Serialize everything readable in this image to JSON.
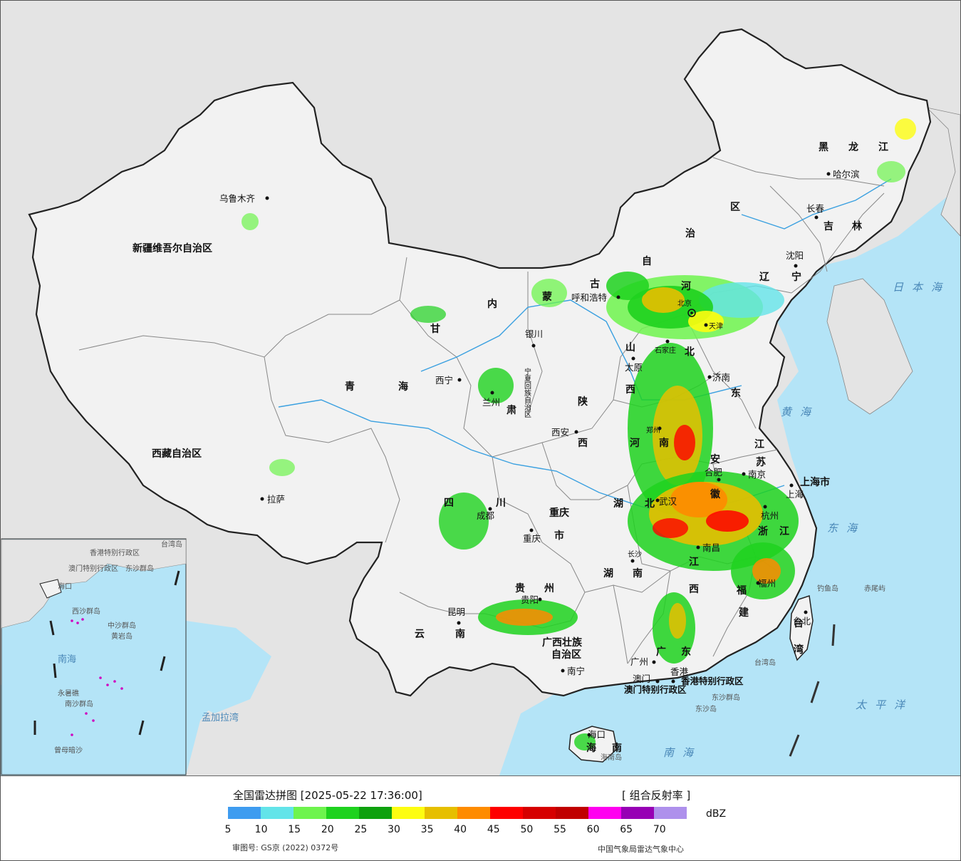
{
  "legend": {
    "title": "全国雷达拼图 [2025-05-22 17:36:00]",
    "product": "[ 组合反射率 ]",
    "unit": "dBZ",
    "ticks": [
      "5",
      "10",
      "15",
      "20",
      "25",
      "30",
      "35",
      "40",
      "45",
      "50",
      "55",
      "60",
      "65",
      "70"
    ],
    "colors": [
      "#3e9cf0",
      "#63e4e9",
      "#6ef44d",
      "#1ed21e",
      "#0ea10e",
      "#fdfd11",
      "#e6bf00",
      "#fe8b00",
      "#fe0000",
      "#d60000",
      "#c00000",
      "#ff00f0",
      "#9700b4",
      "#ae90ec"
    ],
    "approval": "审图号: GS京 (2022) 0372号",
    "source": "中国气象局雷达气象中心"
  },
  "provinces": [
    "新疆维吾尔自治区",
    "西藏自治区",
    "青",
    "海",
    "甘",
    "肃",
    "内",
    "蒙",
    "古",
    "自",
    "治",
    "区",
    "黑",
    "龙",
    "江",
    "吉",
    "林",
    "辽",
    "宁",
    "河",
    "北",
    "山",
    "西",
    "东",
    "陕",
    "宁夏回族自治区",
    "四",
    "川",
    "重庆",
    "市",
    "贵",
    "州",
    "云",
    "南",
    "广西壮族自治区",
    "湖",
    "北",
    "湖",
    "南",
    "江",
    "西",
    "安",
    "徽",
    "江",
    "苏",
    "浙",
    "江",
    "福",
    "建",
    "广",
    "东",
    "海",
    "南",
    "台",
    "湾",
    "上海市",
    "河",
    "南"
  ],
  "cities": [
    "乌鲁木齐",
    "拉萨",
    "西宁",
    "兰州",
    "银川",
    "呼和浩特",
    "北京",
    "天津",
    "石家庄",
    "太原",
    "济南",
    "西安",
    "郑州",
    "合肥",
    "南京",
    "上海",
    "杭州",
    "武汉",
    "南昌",
    "福州",
    "长沙",
    "成都",
    "重庆",
    "贵阳",
    "昆明",
    "南宁",
    "广州",
    "澳门",
    "香港",
    "海口",
    "台北",
    "沈阳",
    "长春",
    "哈尔滨"
  ],
  "regions": [
    "香港特别行政区",
    "澳门特别行政区",
    "东沙群岛",
    "东沙岛",
    "台湾岛",
    "海南岛",
    "钓鱼岛",
    "赤尾屿"
  ],
  "seas": [
    "日本海",
    "黄海",
    "东海",
    "太平洋",
    "南海",
    "孟加拉湾"
  ],
  "inset": [
    "南海",
    "南沙群岛",
    "中沙群岛",
    "西沙群岛",
    "东沙群岛",
    "海口",
    "黄岩岛",
    "永暑礁",
    "曾母暗沙",
    "香港特别行政区",
    "澳门特别行政区",
    "台湾岛"
  ]
}
